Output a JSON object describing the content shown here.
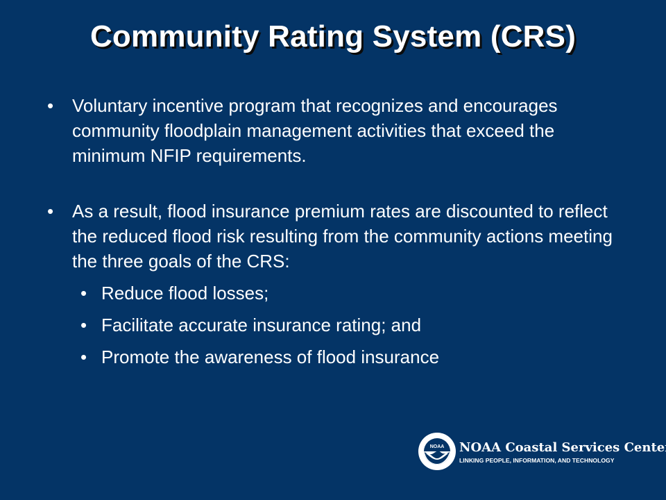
{
  "slide": {
    "title": "Community Rating System (CRS)",
    "bullets": [
      "Voluntary incentive program that recognizes and encourages community floodplain management activities that exceed the minimum NFIP requirements.",
      "As a result, flood insurance premium rates are discounted to reflect the reduced flood risk resulting from the community actions meeting the three goals of the CRS:"
    ],
    "sub_bullets": [
      "Reduce flood losses;",
      "Facilitate accurate insurance rating; and",
      "Promote the awareness of flood insurance"
    ],
    "bullet_glyph": "•"
  },
  "logo": {
    "seal_text": "NOAA",
    "name": "NOAA Coastal Services Center",
    "tagline": "LINKING PEOPLE, INFORMATION, AND TECHNOLOGY",
    "seal_icon": "noaa-seal-icon"
  },
  "colors": {
    "background": "#043466",
    "text": "#ffffff",
    "shadow": "#0b0b0b"
  }
}
